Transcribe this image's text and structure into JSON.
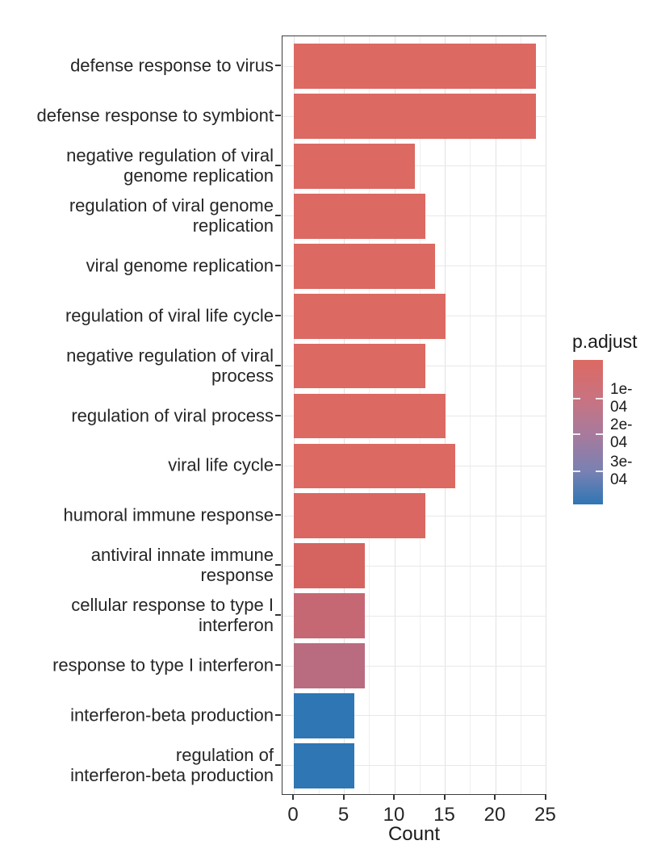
{
  "chart_data": {
    "type": "bar",
    "orientation": "horizontal",
    "title": "",
    "xlabel": "Count",
    "ylabel": "",
    "xlim": [
      0,
      25
    ],
    "x_major_ticks": [
      0,
      5,
      10,
      15,
      20,
      25
    ],
    "x_minor_gridlines": [
      2.5,
      7.5,
      12.5,
      17.5,
      22.5
    ],
    "grid": true,
    "panel_border_color": "#3d3d3d",
    "categories": [
      {
        "label": "defense response to virus",
        "lines": [
          "defense response to virus"
        ],
        "value": 24,
        "color": "#DC6962"
      },
      {
        "label": "defense response to symbiont",
        "lines": [
          "defense response to symbiont"
        ],
        "value": 24,
        "color": "#DC6962"
      },
      {
        "label": "negative regulation of viral genome replication",
        "lines": [
          "negative regulation of viral",
          "genome replication"
        ],
        "value": 12,
        "color": "#DC6962"
      },
      {
        "label": "regulation of viral genome replication",
        "lines": [
          "regulation of viral genome",
          "replication"
        ],
        "value": 13,
        "color": "#DC6962"
      },
      {
        "label": "viral genome replication",
        "lines": [
          "viral genome replication"
        ],
        "value": 14,
        "color": "#DC6962"
      },
      {
        "label": "regulation of viral life cycle",
        "lines": [
          "regulation of viral life cycle"
        ],
        "value": 15,
        "color": "#DC6962"
      },
      {
        "label": "negative regulation of viral process",
        "lines": [
          "negative regulation of viral",
          "process"
        ],
        "value": 13,
        "color": "#DC6962"
      },
      {
        "label": "regulation of viral process",
        "lines": [
          "regulation of viral process"
        ],
        "value": 15,
        "color": "#DC6962"
      },
      {
        "label": "viral life cycle",
        "lines": [
          "viral life cycle"
        ],
        "value": 16,
        "color": "#DC6962"
      },
      {
        "label": "humoral immune response",
        "lines": [
          "humoral immune response"
        ],
        "value": 13,
        "color": "#DA6761"
      },
      {
        "label": "antiviral innate immune response",
        "lines": [
          "antiviral innate immune",
          "response"
        ],
        "value": 7,
        "color": "#D56460"
      },
      {
        "label": "cellular response to type I interferon",
        "lines": [
          "cellular response to type I",
          "interferon"
        ],
        "value": 7,
        "color": "#C66873"
      },
      {
        "label": "response to type I interferon",
        "lines": [
          "response to type I interferon"
        ],
        "value": 7,
        "color": "#B96C80"
      },
      {
        "label": "interferon-beta production",
        "lines": [
          "interferon-beta production"
        ],
        "value": 6,
        "color": "#2F76B4"
      },
      {
        "label": "regulation of interferon-beta production",
        "lines": [
          "regulation of",
          "interferon-beta production"
        ],
        "value": 6,
        "color": "#2F76B4"
      }
    ],
    "legend": {
      "title": "p.adjust",
      "position": "right",
      "ticks": [
        {
          "label": "1e-04",
          "pos": 0.267
        },
        {
          "label": "2e-04",
          "pos": 0.513
        },
        {
          "label": "3e-04",
          "pos": 0.771
        }
      ],
      "gradient": [
        {
          "color": "#DC6962",
          "pos": 0
        },
        {
          "color": "#C97381",
          "pos": 0.27
        },
        {
          "color": "#A87A9C",
          "pos": 0.51
        },
        {
          "color": "#7981B3",
          "pos": 0.77
        },
        {
          "color": "#2F76B4",
          "pos": 1
        }
      ]
    }
  }
}
